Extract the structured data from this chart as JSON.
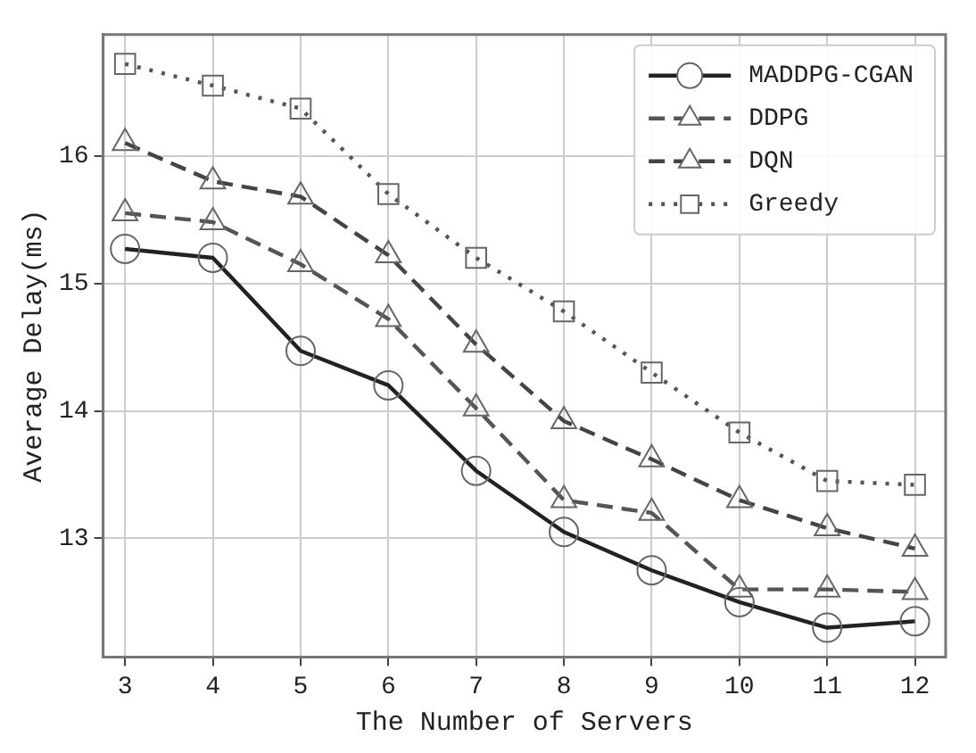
{
  "chart_data": {
    "type": "line",
    "xlabel": "The Number of Servers",
    "ylabel": "Average Delay(ms)",
    "x": [
      3,
      4,
      5,
      6,
      7,
      8,
      9,
      10,
      11,
      12
    ],
    "xlim": [
      2.75,
      12.35
    ],
    "xticks": [
      3,
      4,
      5,
      6,
      7,
      8,
      9,
      10,
      11,
      12
    ],
    "ylim": [
      12.07,
      16.95
    ],
    "yticks": [
      13,
      14,
      15,
      16
    ],
    "grid": true,
    "legend": "top right",
    "series": [
      {
        "name": "MADDPG-CGAN",
        "color": "#222222",
        "marker": "circle",
        "line_style": "solid",
        "values": [
          15.27,
          15.2,
          14.47,
          14.2,
          13.53,
          13.05,
          12.75,
          12.5,
          12.3,
          12.35
        ]
      },
      {
        "name": "DDPG",
        "color": "#555555",
        "marker": "triangle",
        "line_style": "dashed",
        "values": [
          15.55,
          15.48,
          15.15,
          14.72,
          14.02,
          13.3,
          13.2,
          12.6,
          12.6,
          12.58
        ]
      },
      {
        "name": "DQN",
        "color": "#444444",
        "marker": "triangle",
        "line_style": "dashed",
        "values": [
          16.1,
          15.8,
          15.68,
          15.22,
          14.52,
          13.92,
          13.62,
          13.3,
          13.08,
          12.92
        ]
      },
      {
        "name": "Greedy",
        "color": "#555555",
        "marker": "square",
        "line_style": "dotted",
        "values": [
          16.72,
          16.55,
          16.37,
          15.7,
          15.2,
          14.78,
          14.3,
          13.83,
          13.45,
          13.42
        ]
      }
    ]
  }
}
